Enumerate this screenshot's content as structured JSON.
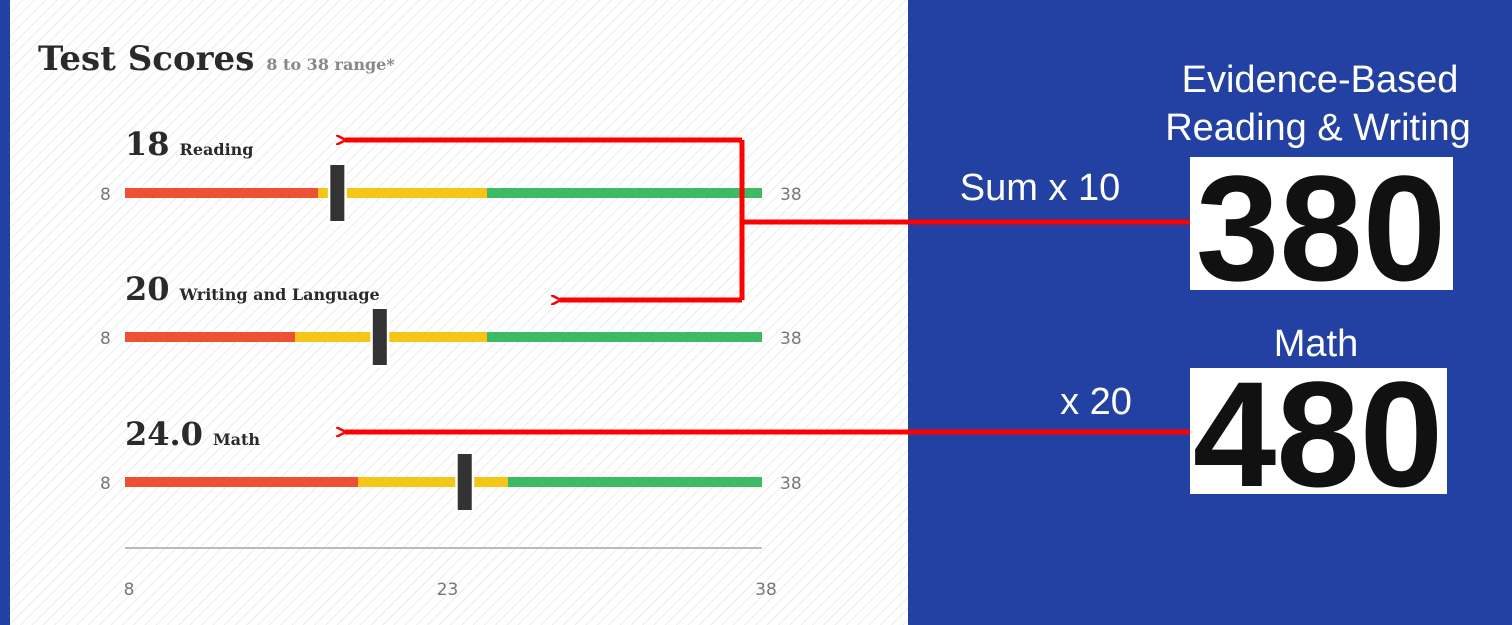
{
  "panel": {
    "title": "Test Scores",
    "subtitle": "8 to 38 range*",
    "scores": [
      {
        "score": "18",
        "subject": "Reading",
        "min": 8,
        "max": 38
      },
      {
        "score": "20",
        "subject": "Writing and Language",
        "min": 8,
        "max": 38
      },
      {
        "score": "24.0",
        "subject": "Math",
        "min": 8,
        "max": 38
      }
    ],
    "axis_ticks": [
      8,
      23,
      38
    ]
  },
  "conversion": {
    "ebrw": {
      "label_lines": [
        "Evidence-Based",
        "Reading & Writing"
      ],
      "operation": "Sum x 10",
      "score": "380"
    },
    "math": {
      "label": "Math",
      "operation": "x 20",
      "score": "480"
    }
  }
}
